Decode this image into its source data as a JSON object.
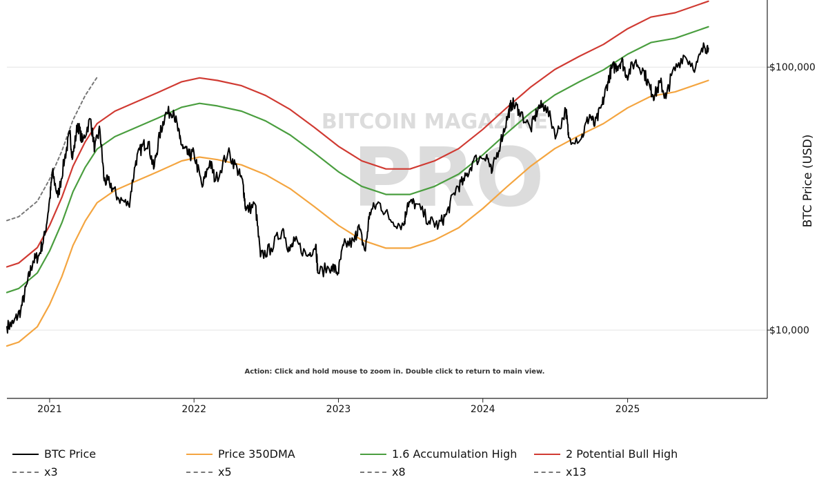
{
  "chart_data": {
    "type": "line",
    "title": "",
    "xlabel": "",
    "ylabel": "BTC Price (USD)",
    "y_scale": "log",
    "ylim": [
      5500,
      180000
    ],
    "xlim": [
      "2020-09-15",
      "2025-12-20"
    ],
    "y_ticks": [
      {
        "value": 10000,
        "label": "$10,000"
      },
      {
        "value": 100000,
        "label": "$100,000"
      }
    ],
    "x_ticks": [
      {
        "value": "2021-01-01",
        "label": "2021"
      },
      {
        "value": "2022-01-01",
        "label": "2022"
      },
      {
        "value": "2023-01-01",
        "label": "2023"
      },
      {
        "value": "2024-01-01",
        "label": "2024"
      },
      {
        "value": "2025-01-01",
        "label": "2025"
      }
    ],
    "grid": true,
    "legend_position": "bottom",
    "annotation": "Action: Click and hold mouse to zoom in.  Double click to return to main view.",
    "watermark": {
      "line1": "BITCOIN MAGAZINE",
      "line2": "PRO"
    },
    "series": [
      {
        "name": "BTC Price",
        "color": "#000000",
        "style": "solid",
        "points": [
          [
            "2020-09-15",
            10300
          ],
          [
            "2020-10-01",
            10600
          ],
          [
            "2020-10-20",
            11900
          ],
          [
            "2020-11-05",
            15000
          ],
          [
            "2020-11-20",
            18300
          ],
          [
            "2020-12-05",
            19200
          ],
          [
            "2020-12-20",
            23000
          ],
          [
            "2021-01-02",
            32000
          ],
          [
            "2021-01-08",
            40000
          ],
          [
            "2021-01-22",
            32000
          ],
          [
            "2021-02-08",
            45000
          ],
          [
            "2021-02-21",
            56000
          ],
          [
            "2021-02-28",
            45000
          ],
          [
            "2021-03-13",
            61000
          ],
          [
            "2021-03-25",
            52000
          ],
          [
            "2021-04-14",
            63500
          ],
          [
            "2021-04-25",
            49000
          ],
          [
            "2021-05-08",
            58000
          ],
          [
            "2021-05-19",
            37000
          ],
          [
            "2021-06-01",
            36500
          ],
          [
            "2021-06-22",
            32000
          ],
          [
            "2021-07-20",
            29800
          ],
          [
            "2021-08-07",
            44000
          ],
          [
            "2021-08-23",
            50000
          ],
          [
            "2021-09-07",
            52000
          ],
          [
            "2021-09-21",
            41000
          ],
          [
            "2021-10-06",
            55000
          ],
          [
            "2021-10-20",
            66000
          ],
          [
            "2021-11-10",
            68500
          ],
          [
            "2021-11-26",
            53500
          ],
          [
            "2021-12-04",
            49000
          ],
          [
            "2021-12-20",
            46000
          ],
          [
            "2022-01-01",
            47000
          ],
          [
            "2022-01-22",
            35000
          ],
          [
            "2022-02-10",
            44000
          ],
          [
            "2022-02-24",
            37000
          ],
          [
            "2022-03-28",
            47500
          ],
          [
            "2022-04-20",
            41000
          ],
          [
            "2022-05-05",
            36000
          ],
          [
            "2022-05-12",
            28500
          ],
          [
            "2022-06-05",
            30000
          ],
          [
            "2022-06-18",
            19000
          ],
          [
            "2022-07-15",
            20500
          ],
          [
            "2022-08-14",
            24300
          ],
          [
            "2022-08-30",
            20000
          ],
          [
            "2022-09-13",
            21800
          ],
          [
            "2022-10-15",
            19100
          ],
          [
            "2022-11-05",
            21200
          ],
          [
            "2022-11-10",
            16500
          ],
          [
            "2022-12-15",
            17500
          ],
          [
            "2022-12-31",
            16500
          ],
          [
            "2023-01-14",
            21000
          ],
          [
            "2023-02-10",
            21700
          ],
          [
            "2023-02-20",
            24800
          ],
          [
            "2023-03-10",
            20000
          ],
          [
            "2023-03-21",
            28000
          ],
          [
            "2023-04-14",
            30500
          ],
          [
            "2023-05-12",
            26300
          ],
          [
            "2023-06-15",
            25000
          ],
          [
            "2023-06-25",
            30500
          ],
          [
            "2023-07-15",
            30200
          ],
          [
            "2023-08-18",
            26000
          ],
          [
            "2023-09-11",
            25000
          ],
          [
            "2023-10-01",
            27500
          ],
          [
            "2023-10-25",
            34500
          ],
          [
            "2023-11-15",
            37000
          ],
          [
            "2023-12-08",
            44000
          ],
          [
            "2024-01-11",
            46500
          ],
          [
            "2024-01-23",
            39500
          ],
          [
            "2024-02-15",
            52000
          ],
          [
            "2024-03-05",
            66000
          ],
          [
            "2024-03-14",
            73000
          ],
          [
            "2024-04-01",
            69000
          ],
          [
            "2024-05-01",
            58000
          ],
          [
            "2024-05-20",
            70000
          ],
          [
            "2024-06-07",
            71500
          ],
          [
            "2024-07-05",
            55000
          ],
          [
            "2024-07-29",
            69000
          ],
          [
            "2024-08-05",
            54000
          ],
          [
            "2024-09-06",
            53500
          ],
          [
            "2024-09-27",
            66000
          ],
          [
            "2024-10-10",
            60000
          ],
          [
            "2024-10-29",
            72000
          ],
          [
            "2024-11-12",
            88000
          ],
          [
            "2024-11-22",
            99000
          ],
          [
            "2024-12-05",
            101000
          ],
          [
            "2024-12-17",
            106000
          ],
          [
            "2024-12-30",
            93000
          ],
          [
            "2025-01-20",
            105000
          ],
          [
            "2025-02-10",
            97000
          ],
          [
            "2025-02-28",
            82000
          ],
          [
            "2025-03-10",
            78000
          ],
          [
            "2025-03-25",
            87500
          ],
          [
            "2025-04-08",
            76000
          ],
          [
            "2025-04-22",
            93000
          ],
          [
            "2025-05-22",
            111000
          ],
          [
            "2025-06-22",
            100000
          ],
          [
            "2025-07-14",
            120000
          ],
          [
            "2025-07-24",
            118000
          ]
        ]
      },
      {
        "name": "Price 350DMA",
        "color": "#f4a540",
        "style": "solid",
        "points": [
          [
            "2020-09-15",
            8700
          ],
          [
            "2020-10-15",
            9000
          ],
          [
            "2020-12-01",
            10300
          ],
          [
            "2021-01-01",
            12500
          ],
          [
            "2021-02-01",
            16000
          ],
          [
            "2021-03-01",
            21000
          ],
          [
            "2021-04-01",
            26000
          ],
          [
            "2021-05-01",
            30500
          ],
          [
            "2021-06-15",
            34000
          ],
          [
            "2021-08-01",
            36500
          ],
          [
            "2021-10-01",
            40000
          ],
          [
            "2021-12-01",
            44000
          ],
          [
            "2022-01-15",
            45500
          ],
          [
            "2022-03-01",
            44500
          ],
          [
            "2022-05-01",
            42500
          ],
          [
            "2022-07-01",
            39000
          ],
          [
            "2022-09-01",
            34500
          ],
          [
            "2022-11-01",
            29500
          ],
          [
            "2023-01-01",
            25000
          ],
          [
            "2023-03-01",
            22000
          ],
          [
            "2023-05-01",
            20500
          ],
          [
            "2023-07-01",
            20500
          ],
          [
            "2023-09-01",
            22000
          ],
          [
            "2023-11-01",
            24500
          ],
          [
            "2024-01-01",
            29000
          ],
          [
            "2024-03-01",
            35000
          ],
          [
            "2024-05-01",
            42000
          ],
          [
            "2024-07-01",
            49000
          ],
          [
            "2024-09-01",
            55000
          ],
          [
            "2024-11-01",
            61000
          ],
          [
            "2025-01-01",
            70000
          ],
          [
            "2025-03-01",
            77500
          ],
          [
            "2025-05-01",
            80500
          ],
          [
            "2025-07-24",
            89000
          ]
        ]
      },
      {
        "name": "1.6 Accumulation High",
        "color": "#4a9e3f",
        "style": "solid",
        "points": [
          [
            "2020-09-15",
            13900
          ],
          [
            "2020-10-15",
            14400
          ],
          [
            "2020-12-01",
            16500
          ],
          [
            "2021-01-01",
            20000
          ],
          [
            "2021-02-01",
            25600
          ],
          [
            "2021-03-01",
            33600
          ],
          [
            "2021-04-01",
            41600
          ],
          [
            "2021-05-01",
            48800
          ],
          [
            "2021-06-15",
            54400
          ],
          [
            "2021-08-01",
            58400
          ],
          [
            "2021-10-01",
            64000
          ],
          [
            "2021-12-01",
            70400
          ],
          [
            "2022-01-15",
            72800
          ],
          [
            "2022-03-01",
            71200
          ],
          [
            "2022-05-01",
            68000
          ],
          [
            "2022-07-01",
            62400
          ],
          [
            "2022-09-01",
            55200
          ],
          [
            "2022-11-01",
            47200
          ],
          [
            "2023-01-01",
            40000
          ],
          [
            "2023-03-01",
            35200
          ],
          [
            "2023-05-01",
            32800
          ],
          [
            "2023-07-01",
            32800
          ],
          [
            "2023-09-01",
            35200
          ],
          [
            "2023-11-01",
            39200
          ],
          [
            "2024-01-01",
            46400
          ],
          [
            "2024-03-01",
            56000
          ],
          [
            "2024-05-01",
            67200
          ],
          [
            "2024-07-01",
            78400
          ],
          [
            "2024-09-01",
            88000
          ],
          [
            "2024-11-01",
            97600
          ],
          [
            "2025-01-01",
            112000
          ],
          [
            "2025-03-01",
            124000
          ],
          [
            "2025-05-01",
            128800
          ],
          [
            "2025-07-24",
            142400
          ]
        ]
      },
      {
        "name": "2 Potential Bull High",
        "color": "#d03a32",
        "style": "solid",
        "points": [
          [
            "2020-09-15",
            17400
          ],
          [
            "2020-10-15",
            18000
          ],
          [
            "2020-12-01",
            20600
          ],
          [
            "2021-01-01",
            25000
          ],
          [
            "2021-02-01",
            32000
          ],
          [
            "2021-03-01",
            42000
          ],
          [
            "2021-04-01",
            52000
          ],
          [
            "2021-05-01",
            61000
          ],
          [
            "2021-06-15",
            68000
          ],
          [
            "2021-08-01",
            73000
          ],
          [
            "2021-10-01",
            80000
          ],
          [
            "2021-12-01",
            88000
          ],
          [
            "2022-01-15",
            91000
          ],
          [
            "2022-03-01",
            89000
          ],
          [
            "2022-05-01",
            85000
          ],
          [
            "2022-07-01",
            78000
          ],
          [
            "2022-09-01",
            69000
          ],
          [
            "2022-11-01",
            59000
          ],
          [
            "2023-01-01",
            50000
          ],
          [
            "2023-03-01",
            44000
          ],
          [
            "2023-05-01",
            41000
          ],
          [
            "2023-07-01",
            41000
          ],
          [
            "2023-09-01",
            44000
          ],
          [
            "2023-11-01",
            49000
          ],
          [
            "2024-01-01",
            58000
          ],
          [
            "2024-03-01",
            70000
          ],
          [
            "2024-05-01",
            84000
          ],
          [
            "2024-07-01",
            98000
          ],
          [
            "2024-09-01",
            110000
          ],
          [
            "2024-11-01",
            122000
          ],
          [
            "2025-01-01",
            140000
          ],
          [
            "2025-03-01",
            155000
          ],
          [
            "2025-05-01",
            161000
          ],
          [
            "2025-07-24",
            178000
          ]
        ]
      },
      {
        "name": "x3",
        "color": "#777777",
        "style": "dashed",
        "points": [
          [
            "2020-09-15",
            26100
          ],
          [
            "2020-10-15",
            27000
          ],
          [
            "2020-12-01",
            30900
          ],
          [
            "2021-01-01",
            37500
          ],
          [
            "2021-02-01",
            48000
          ],
          [
            "2021-03-01",
            63000
          ],
          [
            "2021-04-01",
            78000
          ],
          [
            "2021-05-01",
            91500
          ]
        ]
      },
      {
        "name": "x5",
        "color": "#777777",
        "style": "dashed",
        "points": []
      },
      {
        "name": "x8",
        "color": "#777777",
        "style": "dashed",
        "points": []
      },
      {
        "name": "x13",
        "color": "#777777",
        "style": "dashed",
        "points": []
      }
    ]
  }
}
